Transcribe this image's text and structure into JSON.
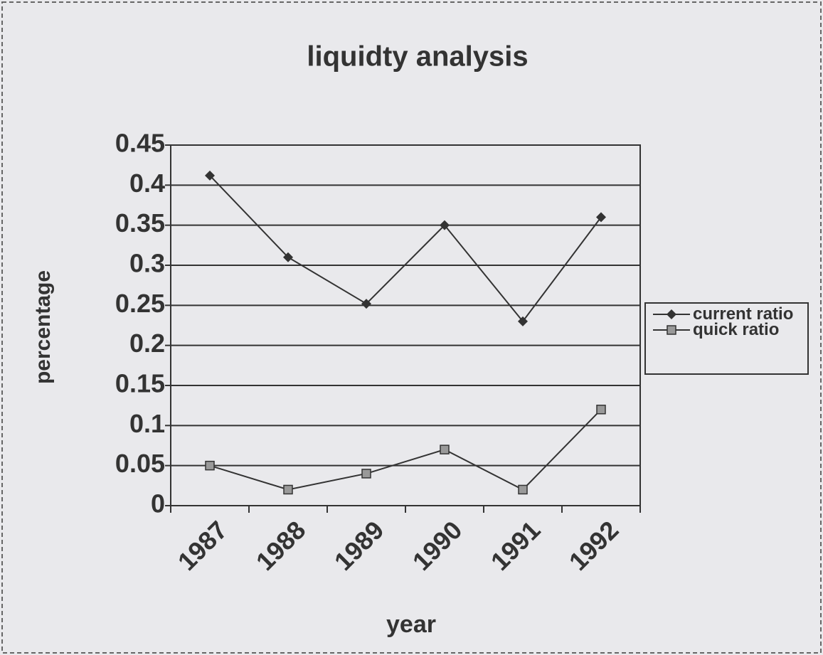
{
  "chart_data": {
    "type": "line",
    "title": "liquidty analysis",
    "x_label": "year",
    "y_label": "percentage",
    "categories": [
      "1987",
      "1988",
      "1989",
      "1990",
      "1991",
      "1992"
    ],
    "series": [
      {
        "name": "current ratio",
        "color": "#333333",
        "marker": "diamond",
        "values": [
          0.412,
          0.31,
          0.252,
          0.35,
          0.23,
          0.36
        ]
      },
      {
        "name": "quick ratio",
        "color": "#333333",
        "marker": "square",
        "values": [
          0.05,
          0.02,
          0.04,
          0.07,
          0.02,
          0.12
        ]
      }
    ],
    "ylim": [
      0,
      0.45
    ],
    "yticks": [
      0,
      0.05,
      0.1,
      0.15,
      0.2,
      0.25,
      0.3,
      0.35,
      0.4,
      0.45
    ],
    "grid": true,
    "legend": "right"
  }
}
